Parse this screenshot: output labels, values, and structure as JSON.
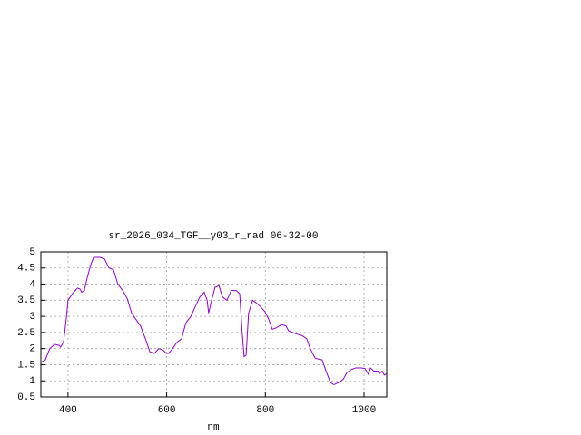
{
  "chart_data": {
    "type": "line",
    "title": "sr_2026_034_TGF__y03_r_rad 06-32-00",
    "x_label": "nm",
    "x": [
      345,
      354,
      363,
      373,
      382,
      385,
      391,
      397,
      400,
      409,
      419,
      424,
      428,
      433,
      439,
      446,
      452,
      465,
      474,
      483,
      492,
      501,
      511,
      520,
      529,
      538,
      547,
      557,
      566,
      575,
      584,
      593,
      599,
      604,
      612,
      621,
      630,
      639,
      649,
      658,
      667,
      676,
      682,
      685,
      691,
      698,
      706,
      713,
      722,
      731,
      741,
      748,
      753,
      757,
      761,
      766,
      774,
      783,
      790,
      799,
      807,
      814,
      823,
      833,
      842,
      847,
      855,
      864,
      875,
      884,
      891,
      901,
      906,
      915,
      923,
      932,
      939,
      949,
      958,
      965,
      974,
      983,
      995,
      1002,
      1009,
      1013,
      1020,
      1028,
      1031,
      1037,
      1041,
      1046
    ],
    "series": [
      {
        "color": "#9400d3",
        "values": [
          1.57,
          1.65,
          2.0,
          2.13,
          2.1,
          2.05,
          2.2,
          3.0,
          3.5,
          3.7,
          3.88,
          3.85,
          3.75,
          3.8,
          4.2,
          4.6,
          4.83,
          4.83,
          4.78,
          4.5,
          4.45,
          4.0,
          3.8,
          3.55,
          3.1,
          2.9,
          2.7,
          2.3,
          1.9,
          1.85,
          2.0,
          1.95,
          1.85,
          1.85,
          2.0,
          2.2,
          2.3,
          2.8,
          3.0,
          3.3,
          3.6,
          3.75,
          3.5,
          3.1,
          3.5,
          3.9,
          3.95,
          3.6,
          3.5,
          3.8,
          3.8,
          3.7,
          2.5,
          1.75,
          1.8,
          3.1,
          3.5,
          3.4,
          3.3,
          3.15,
          2.9,
          2.6,
          2.65,
          2.75,
          2.7,
          2.55,
          2.5,
          2.45,
          2.4,
          2.3,
          2.0,
          1.7,
          1.68,
          1.65,
          1.3,
          0.95,
          0.88,
          0.95,
          1.05,
          1.25,
          1.35,
          1.4,
          1.4,
          1.38,
          1.2,
          1.4,
          1.3,
          1.3,
          1.22,
          1.3,
          1.18,
          1.22
        ]
      }
    ],
    "xlim": [
      345,
      1046
    ],
    "ylim": [
      0.5,
      5
    ],
    "xticks": [
      400,
      600,
      800,
      1000
    ],
    "yticks": [
      0.5,
      1,
      1.5,
      2,
      2.5,
      3,
      3.5,
      4,
      4.5,
      5
    ],
    "grid": true
  }
}
